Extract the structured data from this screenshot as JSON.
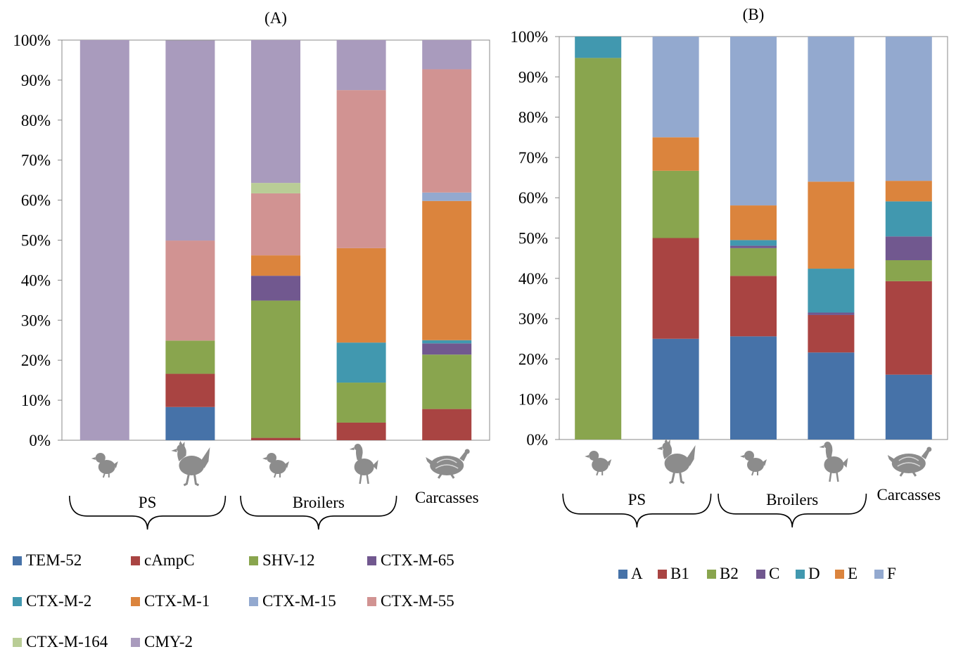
{
  "chart_data": [
    {
      "type": "bar",
      "stacked": true,
      "percent": true,
      "title": "(A)",
      "ylim": [
        0,
        100
      ],
      "yticks": [
        "0%",
        "10%",
        "20%",
        "30%",
        "40%",
        "50%",
        "60%",
        "70%",
        "80%",
        "90%",
        "100%"
      ],
      "grid": false,
      "legend_position": "bottom",
      "categories": [
        "chick",
        "hen",
        "chick",
        "bird",
        "carcass"
      ],
      "category_icons": [
        "chick-icon",
        "hen-icon",
        "chick-icon",
        "bird-icon",
        "carcass-icon"
      ],
      "groups": [
        {
          "label": "PS",
          "span": [
            0,
            1
          ]
        },
        {
          "label": "Broilers",
          "span": [
            2,
            3
          ]
        },
        {
          "label": "Carcasses",
          "span": [
            4,
            4
          ]
        }
      ],
      "series": [
        {
          "name": "TEM-52",
          "color": "#4672A8",
          "values": [
            0,
            8.3,
            0,
            0,
            0
          ]
        },
        {
          "name": "cAmpC",
          "color": "#A94442",
          "values": [
            0,
            8.3,
            0.6,
            4.4,
            7.8
          ]
        },
        {
          "name": "SHV-12",
          "color": "#89A54E",
          "values": [
            0,
            8.3,
            34.3,
            10,
            13.6
          ]
        },
        {
          "name": "CTX-M-65",
          "color": "#71588F",
          "values": [
            0,
            0,
            6.2,
            0,
            2.8
          ]
        },
        {
          "name": "CTX-M-2",
          "color": "#4198AF",
          "values": [
            0,
            0,
            0,
            10,
            0.8
          ]
        },
        {
          "name": "CTX-M-1",
          "color": "#DB843D",
          "values": [
            0,
            0,
            5.1,
            23.6,
            34.8
          ]
        },
        {
          "name": "CTX-M-15",
          "color": "#93A9CF",
          "values": [
            0,
            0,
            0,
            0,
            2.1
          ]
        },
        {
          "name": "CTX-M-55",
          "color": "#D19392",
          "values": [
            0,
            25,
            15.5,
            39.5,
            30.8
          ]
        },
        {
          "name": "CTX-M-164",
          "color": "#B9CD96",
          "values": [
            0,
            0,
            2.6,
            0,
            0
          ]
        },
        {
          "name": "CMY-2",
          "color": "#A99BBD",
          "values": [
            100,
            50,
            35.7,
            12.5,
            7.3
          ]
        }
      ]
    },
    {
      "type": "bar",
      "stacked": true,
      "percent": true,
      "title": "(B)",
      "ylim": [
        0,
        100
      ],
      "yticks": [
        "0%",
        "10%",
        "20%",
        "30%",
        "40%",
        "50%",
        "60%",
        "70%",
        "80%",
        "90%",
        "100%"
      ],
      "grid": false,
      "legend_position": "bottom",
      "categories": [
        "chick",
        "hen",
        "chick",
        "bird",
        "carcass"
      ],
      "category_icons": [
        "chick-icon",
        "hen-icon",
        "chick-icon",
        "bird-icon",
        "carcass-icon"
      ],
      "groups": [
        {
          "label": "PS",
          "span": [
            0,
            1
          ]
        },
        {
          "label": "Broilers",
          "span": [
            2,
            3
          ]
        },
        {
          "label": "Carcasses",
          "span": [
            4,
            4
          ]
        }
      ],
      "series": [
        {
          "name": "A",
          "color": "#4672A8",
          "values": [
            0,
            25,
            25.6,
            21.6,
            16.1
          ]
        },
        {
          "name": "B1",
          "color": "#A94442",
          "values": [
            0,
            25,
            15,
            9.3,
            23.2
          ]
        },
        {
          "name": "B2",
          "color": "#89A54E",
          "values": [
            94.7,
            16.7,
            6.9,
            0,
            5.2
          ]
        },
        {
          "name": "C",
          "color": "#71588F",
          "values": [
            0,
            0,
            0.6,
            0.6,
            5.9
          ]
        },
        {
          "name": "D",
          "color": "#4198AF",
          "values": [
            5.3,
            0,
            1.4,
            10.9,
            8.7
          ]
        },
        {
          "name": "E",
          "color": "#DB843D",
          "values": [
            0,
            8.3,
            8.6,
            21.6,
            5.1
          ]
        },
        {
          "name": "F",
          "color": "#93A9CF",
          "values": [
            0,
            25,
            41.9,
            36,
            35.8
          ]
        }
      ]
    }
  ]
}
